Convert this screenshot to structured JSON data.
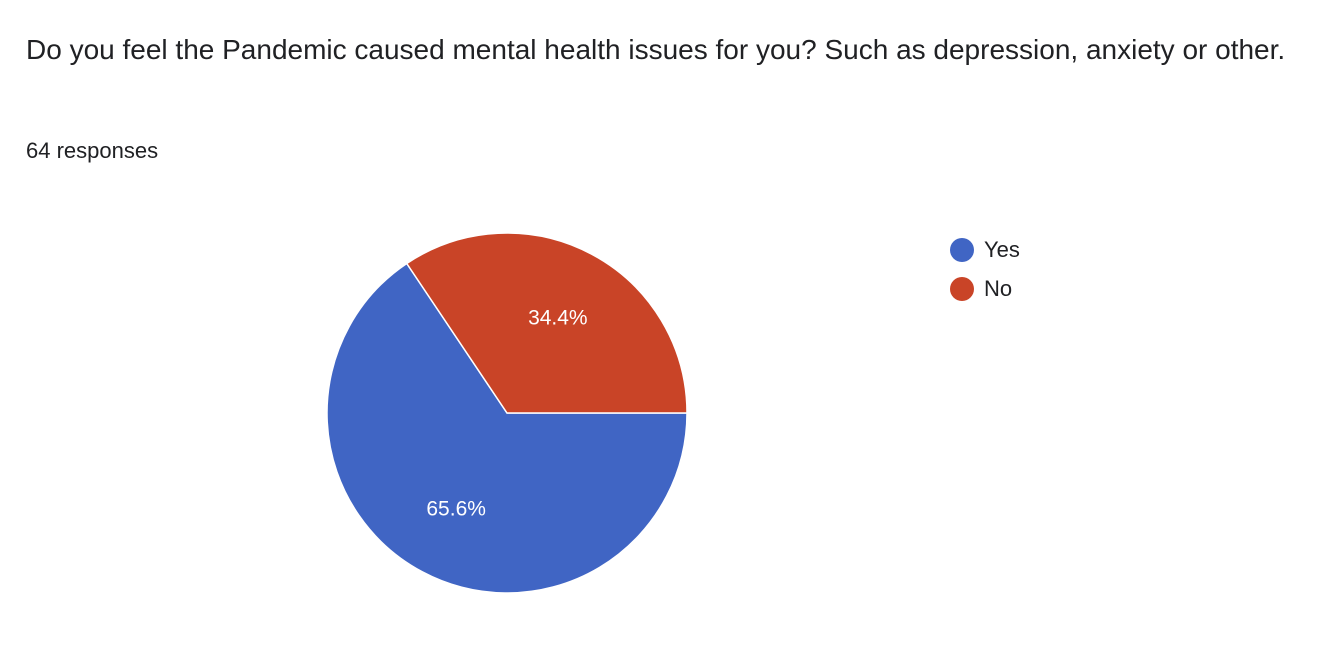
{
  "question": "Do you feel the Pandemic caused mental health issues for you? Such as depression, anxiety or other.",
  "response_count": "64 responses",
  "chart_data": {
    "type": "pie",
    "categories": [
      "Yes",
      "No"
    ],
    "values": [
      65.6,
      34.4
    ],
    "labels": [
      "65.6%",
      "34.4%"
    ],
    "colors": [
      "#4065c4",
      "#c94427"
    ],
    "legend_position": "right"
  }
}
